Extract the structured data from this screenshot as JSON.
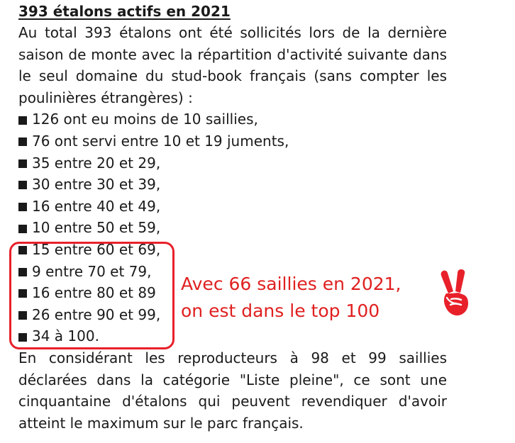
{
  "title": "393 étalons actifs en 2021",
  "intro": "Au total 393 étalons ont été sollicités lors de la dernière saison de monte avec la répartition d'activité suivante dans le seul domaine du stud-book français (sans compter les poulinières étrangères) :",
  "items": [
    {
      "text": "126 ont eu moins de 10 saillies,"
    },
    {
      "text": "76 ont servi entre 10 et 19 juments,"
    },
    {
      "text": "35 entre 20 et 29,"
    },
    {
      "text": "30 entre 30 et 39,"
    },
    {
      "text": "16 entre 40 et 49,"
    },
    {
      "text": "10 entre 50 et 59,"
    },
    {
      "text": "15 entre 60 et 69,"
    },
    {
      "text": "9 entre 70 et 79,"
    },
    {
      "text": "16 entre 80 et 89"
    },
    {
      "text": "26 entre 90 et 99,"
    },
    {
      "text": "34 à 100."
    }
  ],
  "conclusion": "En considérant les reproducteurs à 98 et 99 saillies déclarées dans la catégorie \"Liste pleine\", ce sont une cinquantaine d'étalons qui peuvent revendiquer d'avoir atteint le maximum sur le parc français.",
  "annotation": {
    "line1": "Avec 66 saillies en 2021,",
    "line2": "on est dans le top 100",
    "icon": "victory-hand-icon",
    "color": "#e02020"
  },
  "colors": {
    "highlight": "#e8202a",
    "text": "#1a1a1a"
  }
}
